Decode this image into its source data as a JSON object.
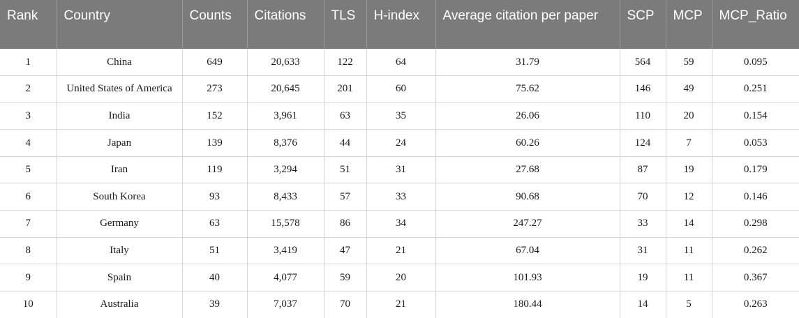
{
  "columns": [
    "Rank",
    "Country",
    "Counts",
    "Citations",
    "TLS",
    "H-index",
    "Average citation per paper",
    "SCP",
    "MCP",
    "MCP_Ratio"
  ],
  "rows": [
    [
      "1",
      "China",
      "649",
      "20,633",
      "122",
      "64",
      "31.79",
      "564",
      "59",
      "0.095"
    ],
    [
      "2",
      "United States of America",
      "273",
      "20,645",
      "201",
      "60",
      "75.62",
      "146",
      "49",
      "0.251"
    ],
    [
      "3",
      "India",
      "152",
      "3,961",
      "63",
      "35",
      "26.06",
      "110",
      "20",
      "0.154"
    ],
    [
      "4",
      "Japan",
      "139",
      "8,376",
      "44",
      "24",
      "60.26",
      "124",
      "7",
      "0.053"
    ],
    [
      "5",
      "Iran",
      "119",
      "3,294",
      "51",
      "31",
      "27.68",
      "87",
      "19",
      "0.179"
    ],
    [
      "6",
      "South Korea",
      "93",
      "8,433",
      "57",
      "33",
      "90.68",
      "70",
      "12",
      "0.146"
    ],
    [
      "7",
      "Germany",
      "63",
      "15,578",
      "86",
      "34",
      "247.27",
      "33",
      "14",
      "0.298"
    ],
    [
      "8",
      "Italy",
      "51",
      "3,419",
      "47",
      "21",
      "67.04",
      "31",
      "11",
      "0.262"
    ],
    [
      "9",
      "Spain",
      "40",
      "4,077",
      "59",
      "20",
      "101.93",
      "19",
      "11",
      "0.367"
    ],
    [
      "10",
      "Australia",
      "39",
      "7,037",
      "70",
      "21",
      "180.44",
      "14",
      "5",
      "0.263"
    ]
  ]
}
